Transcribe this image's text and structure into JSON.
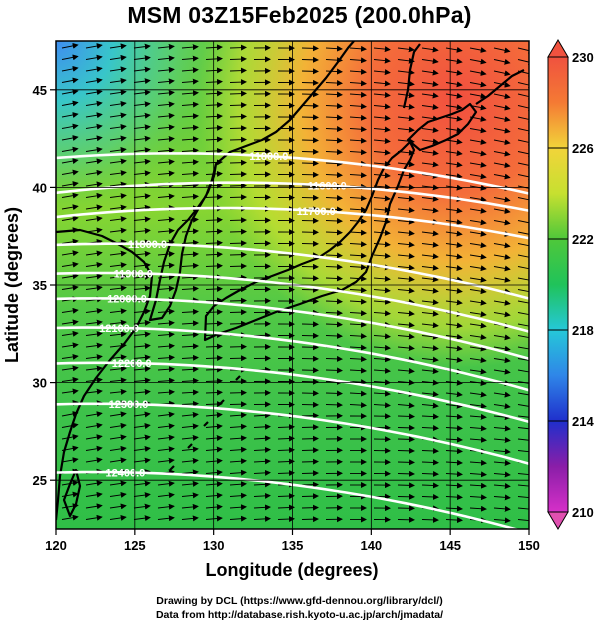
{
  "title": "MSM 03Z15Feb2025 (200.0hPa)",
  "xaxis": {
    "label": "Longitude (degrees)",
    "ticks": [
      "120",
      "125",
      "130",
      "135",
      "140",
      "145",
      "150"
    ],
    "range": [
      120,
      150
    ]
  },
  "yaxis": {
    "label": "Latitude  (degrees)",
    "ticks": [
      "25",
      "30",
      "35",
      "40",
      "45"
    ],
    "range": [
      22.5,
      47.5
    ]
  },
  "colorbar": {
    "ticks": [
      "210",
      "214",
      "218",
      "222",
      "226",
      "230"
    ],
    "range": [
      210,
      230
    ]
  },
  "contours": [
    {
      "label": "11800.0",
      "lon": 133.5,
      "lat": 41.6
    },
    {
      "label": "11600.0",
      "lon": 137.2,
      "lat": 40.1
    },
    {
      "label": "11700.0",
      "lon": 136.5,
      "lat": 38.8
    },
    {
      "label": "11800.0",
      "lon": 125.8,
      "lat": 37.1
    },
    {
      "label": "11900.0",
      "lon": 124.9,
      "lat": 35.6
    },
    {
      "label": "12000.0",
      "lon": 124.5,
      "lat": 34.3
    },
    {
      "label": "12100.0",
      "lon": 124.0,
      "lat": 32.8
    },
    {
      "label": "12200.0",
      "lon": 124.8,
      "lat": 31.0
    },
    {
      "label": "12300.0",
      "lon": 124.6,
      "lat": 28.9
    },
    {
      "label": "12400.0",
      "lon": 124.4,
      "lat": 25.4
    }
  ],
  "credits": {
    "line1": "Drawing by DCL (https://www.gfd-dennou.org/library/dcl/)",
    "line2": "Data from http://database.rish.kyoto-u.ac.jp/arch/jmadata/"
  }
}
